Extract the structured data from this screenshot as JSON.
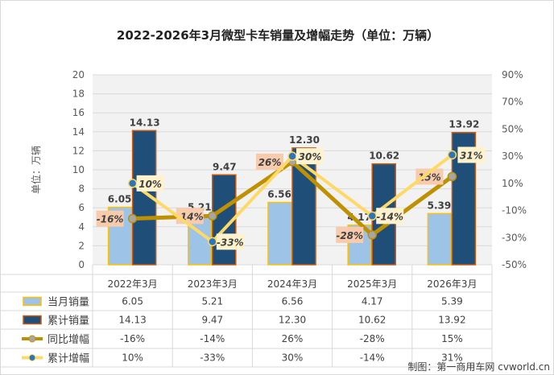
{
  "chart_data": {
    "type": "bar",
    "title": "2022-2026年3月微型卡车销量及增幅走势（单位：万辆）",
    "ylabel": "单位：万辆",
    "ylim": [
      0,
      20
    ],
    "y2lim": [
      -50,
      90
    ],
    "yticks": [
      "0",
      "2",
      "4",
      "6",
      "8",
      "10",
      "12",
      "14",
      "16",
      "18",
      "20"
    ],
    "y2ticks": [
      "-50%",
      "-30%",
      "-10%",
      "10%",
      "30%",
      "50%",
      "70%",
      "90%"
    ],
    "categories": [
      "2022年3月",
      "2023年3月",
      "2024年3月",
      "2025年3月",
      "2026年3月"
    ],
    "series": [
      {
        "name": "当月销量",
        "type": "bar",
        "values": [
          6.05,
          5.21,
          6.56,
          4.17,
          5.39
        ],
        "labels": [
          "6.05",
          "5.21",
          "6.56",
          "4.17",
          "5.39"
        ],
        "color": "#9dc3e6"
      },
      {
        "name": "累计销量",
        "type": "bar",
        "values": [
          14.13,
          9.47,
          12.3,
          10.62,
          13.92
        ],
        "labels": [
          "14.13",
          "9.47",
          "12.30",
          "10.62",
          "13.92"
        ],
        "color": "#1f4e79"
      },
      {
        "name": "同比增幅",
        "type": "line",
        "values": [
          -16,
          -14,
          26,
          -28,
          15
        ],
        "labels": [
          "-16%",
          "-14%",
          "26%",
          "-28%",
          "15%"
        ],
        "color": "#bf9000"
      },
      {
        "name": "累计增幅",
        "type": "line",
        "values": [
          10,
          -33,
          30,
          -14,
          31
        ],
        "labels": [
          "10%",
          "-33%",
          "30%",
          "-14%",
          "31%"
        ],
        "color": "#ffd966"
      }
    ],
    "legend": "bottom-table",
    "grid": true
  },
  "footer": "制图：第一商用车网 cvworld.cn"
}
